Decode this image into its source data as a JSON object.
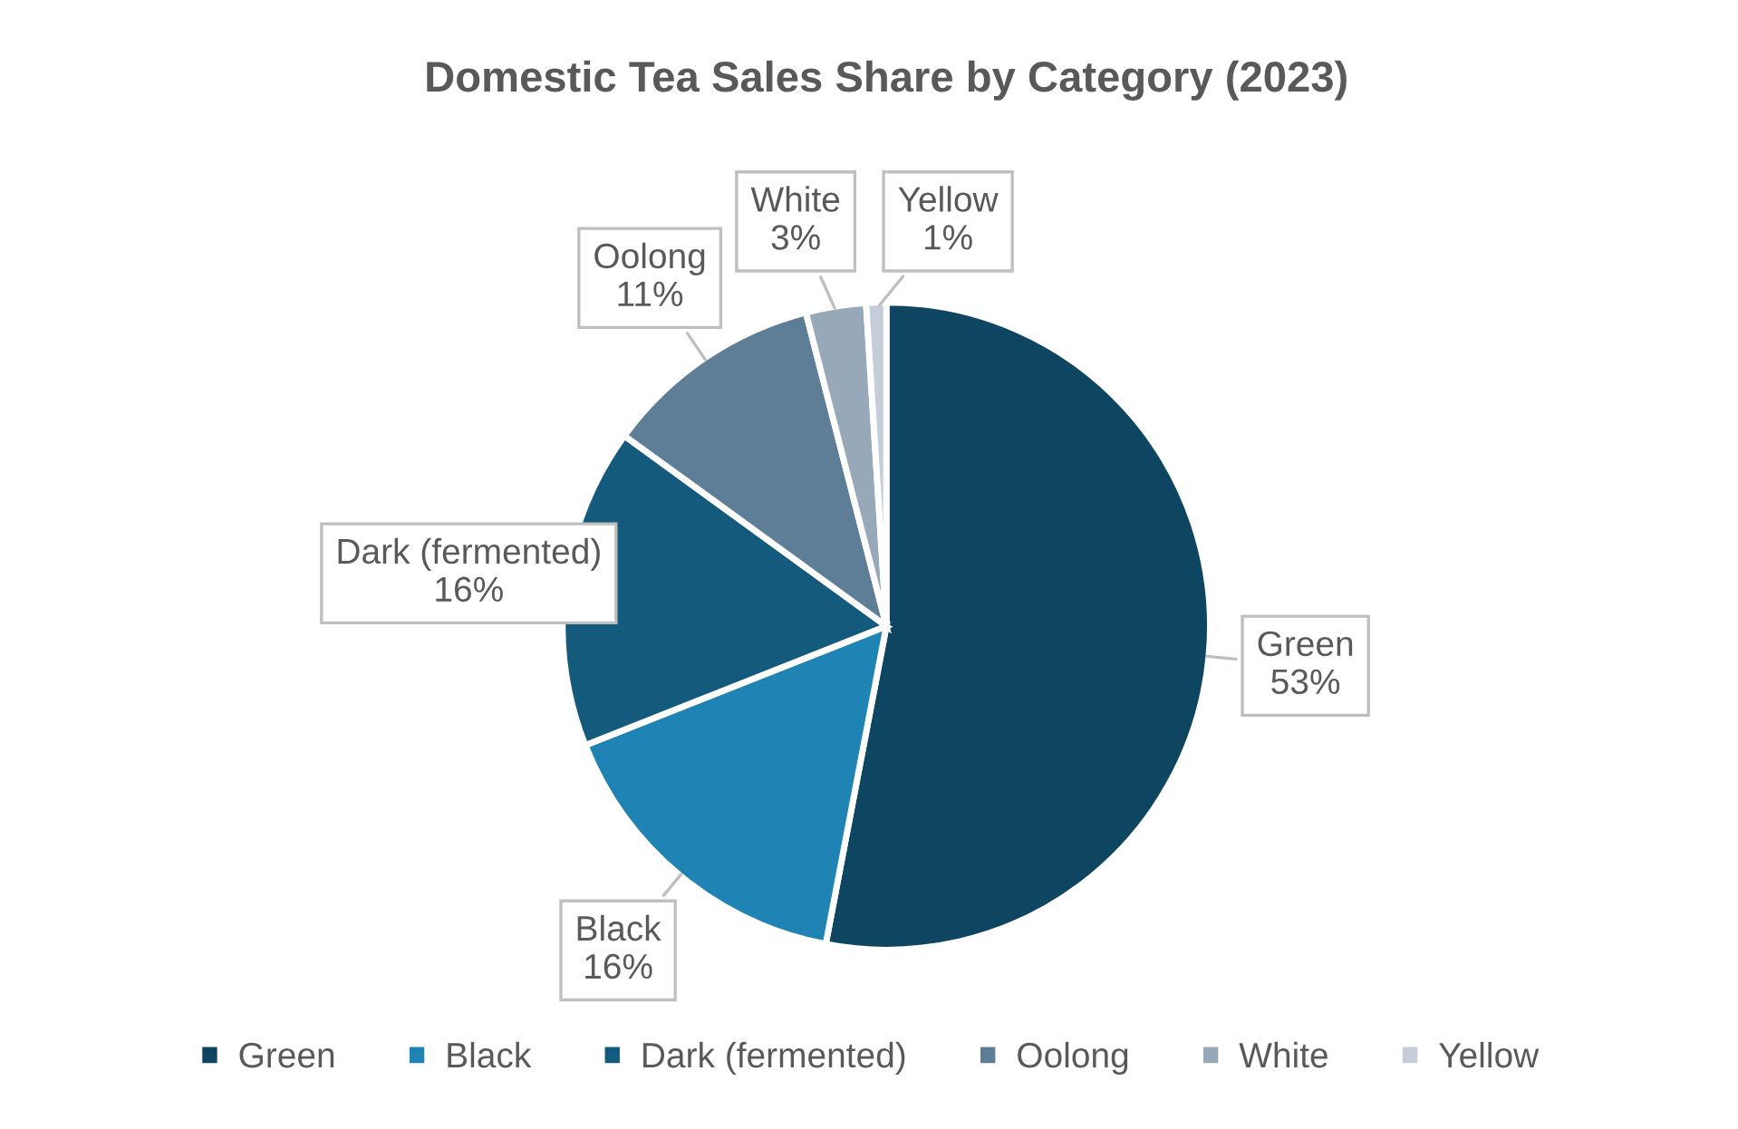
{
  "chart_data": {
    "type": "pie",
    "title": "Domestic Tea Sales Share by Category (2023)",
    "categories": [
      "Green",
      "Black",
      "Dark (fermented)",
      "Oolong",
      "White",
      "Yellow"
    ],
    "values": [
      53,
      16,
      16,
      11,
      3,
      1
    ],
    "colors": [
      "#0e4560",
      "#1f84b4",
      "#145a7c",
      "#5e7d96",
      "#97a8b8",
      "#c5ced8"
    ],
    "value_labels": [
      "53%",
      "16%",
      "16%",
      "11%",
      "3%",
      "1%"
    ],
    "legend": "bottom"
  }
}
